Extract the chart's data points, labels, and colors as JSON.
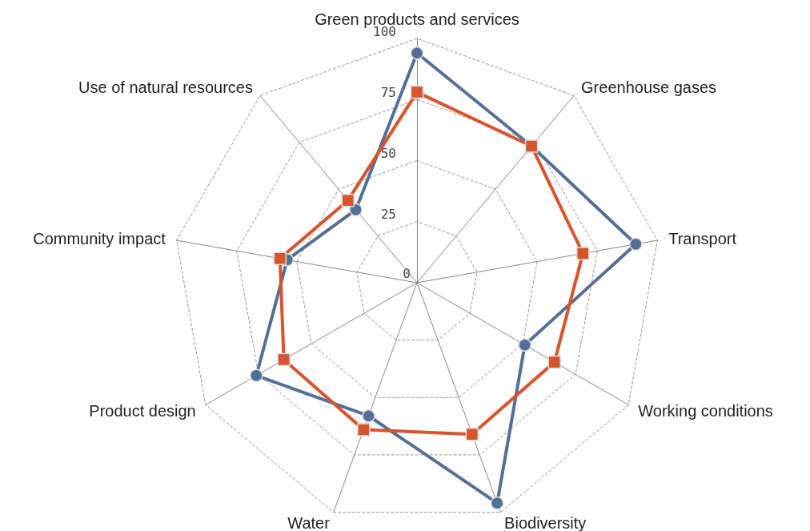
{
  "chart_data": {
    "type": "radar",
    "categories": [
      "Green products and services",
      "Greenhouse gases",
      "Transport",
      "Working conditions",
      "Biodiversity",
      "Water",
      "Product design",
      "Community impact",
      "Use of natural resources"
    ],
    "ylim": [
      0,
      100
    ],
    "yticks": [
      0,
      25,
      50,
      75,
      100
    ],
    "grid": true,
    "series": [
      {
        "color": "#536f99",
        "marker": "circle",
        "values": [
          94,
          73,
          91,
          51,
          96,
          58,
          76,
          54,
          39
        ]
      },
      {
        "color": "#d9532b",
        "marker": "square",
        "values": [
          78,
          73,
          69,
          65,
          66,
          64,
          63,
          57,
          44
        ]
      }
    ]
  }
}
